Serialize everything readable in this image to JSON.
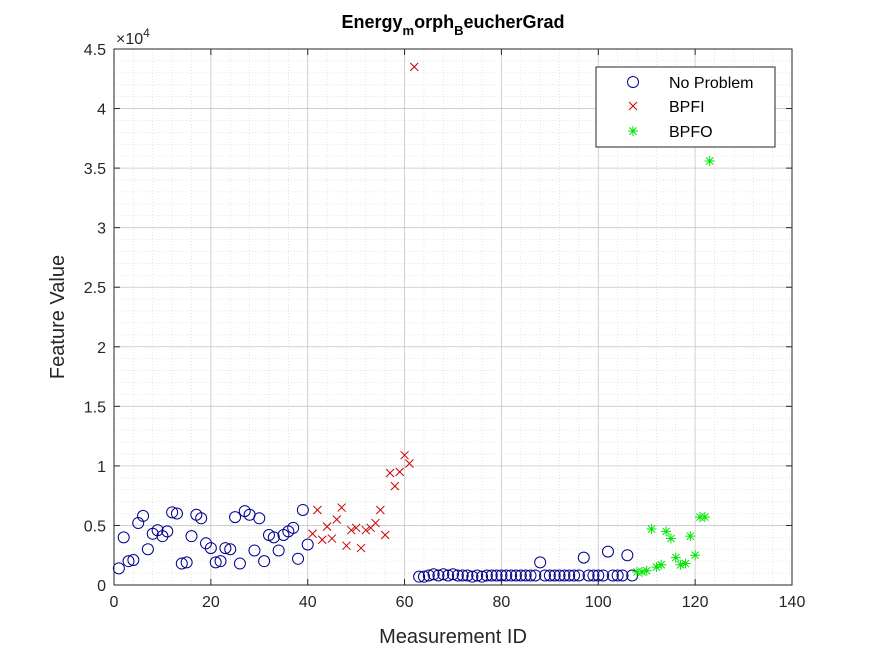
{
  "chart_data": {
    "type": "scatter",
    "title": {
      "main": "Energy",
      "sub1": "m",
      "mid": "orph",
      "sub2": "B",
      "tail": "eucherGrad"
    },
    "xlabel": "Measurement ID",
    "ylabel": "Feature Value",
    "y_exponent_label": "×10",
    "y_exponent_power": "4",
    "xlim": [
      0,
      140
    ],
    "ylim": [
      0,
      45000
    ],
    "xticks": [
      0,
      20,
      40,
      60,
      80,
      100,
      120,
      140
    ],
    "xtick_labels": [
      "0",
      "20",
      "40",
      "60",
      "80",
      "100",
      "120",
      "140"
    ],
    "yticks": [
      0,
      5000,
      10000,
      15000,
      20000,
      25000,
      30000,
      35000,
      40000,
      45000
    ],
    "ytick_labels": [
      "0",
      "0.5",
      "1",
      "1.5",
      "2",
      "2.5",
      "3",
      "3.5",
      "4",
      "4.5"
    ],
    "grid": true,
    "minor_grid": true,
    "legend_position": "top-right",
    "series": [
      {
        "name": "No Problem",
        "marker": "circle",
        "color": "#00008B",
        "points": [
          [
            1,
            1400
          ],
          [
            2,
            4000
          ],
          [
            3,
            2000
          ],
          [
            4,
            2100
          ],
          [
            5,
            5200
          ],
          [
            6,
            5800
          ],
          [
            7,
            3000
          ],
          [
            8,
            4300
          ],
          [
            9,
            4600
          ],
          [
            10,
            4100
          ],
          [
            11,
            4500
          ],
          [
            12,
            6100
          ],
          [
            13,
            6000
          ],
          [
            14,
            1800
          ],
          [
            15,
            1900
          ],
          [
            16,
            4100
          ],
          [
            17,
            5900
          ],
          [
            18,
            5600
          ],
          [
            19,
            3500
          ],
          [
            20,
            3100
          ],
          [
            21,
            1900
          ],
          [
            22,
            2000
          ],
          [
            23,
            3100
          ],
          [
            24,
            3000
          ],
          [
            25,
            5700
          ],
          [
            26,
            1800
          ],
          [
            27,
            6200
          ],
          [
            28,
            5900
          ],
          [
            29,
            2900
          ],
          [
            30,
            5600
          ],
          [
            31,
            2000
          ],
          [
            32,
            4200
          ],
          [
            33,
            4000
          ],
          [
            34,
            2900
          ],
          [
            35,
            4200
          ],
          [
            36,
            4500
          ],
          [
            37,
            4800
          ],
          [
            38,
            2200
          ],
          [
            39,
            6300
          ],
          [
            40,
            3400
          ],
          [
            63,
            700
          ],
          [
            64,
            700
          ],
          [
            65,
            800
          ],
          [
            66,
            900
          ],
          [
            67,
            800
          ],
          [
            68,
            900
          ],
          [
            69,
            800
          ],
          [
            70,
            900
          ],
          [
            71,
            800
          ],
          [
            72,
            800
          ],
          [
            73,
            800
          ],
          [
            74,
            700
          ],
          [
            75,
            800
          ],
          [
            76,
            700
          ],
          [
            77,
            800
          ],
          [
            78,
            800
          ],
          [
            79,
            800
          ],
          [
            80,
            800
          ],
          [
            81,
            800
          ],
          [
            82,
            800
          ],
          [
            83,
            800
          ],
          [
            84,
            800
          ],
          [
            85,
            800
          ],
          [
            86,
            800
          ],
          [
            87,
            800
          ],
          [
            88,
            1900
          ],
          [
            89,
            800
          ],
          [
            90,
            800
          ],
          [
            91,
            800
          ],
          [
            92,
            800
          ],
          [
            93,
            800
          ],
          [
            94,
            800
          ],
          [
            95,
            800
          ],
          [
            96,
            800
          ],
          [
            97,
            2300
          ],
          [
            98,
            800
          ],
          [
            99,
            800
          ],
          [
            100,
            800
          ],
          [
            101,
            800
          ],
          [
            102,
            2800
          ],
          [
            103,
            800
          ],
          [
            104,
            800
          ],
          [
            105,
            800
          ],
          [
            106,
            2500
          ],
          [
            107,
            800
          ]
        ]
      },
      {
        "name": "BPFI",
        "marker": "x",
        "color": "#CC0000",
        "points": [
          [
            41,
            4300
          ],
          [
            42,
            6300
          ],
          [
            43,
            3800
          ],
          [
            44,
            4900
          ],
          [
            45,
            3900
          ],
          [
            46,
            5500
          ],
          [
            47,
            6500
          ],
          [
            48,
            3300
          ],
          [
            49,
            4600
          ],
          [
            50,
            4800
          ],
          [
            51,
            3100
          ],
          [
            52,
            4600
          ],
          [
            53,
            4800
          ],
          [
            54,
            5200
          ],
          [
            55,
            6300
          ],
          [
            56,
            4200
          ],
          [
            57,
            9400
          ],
          [
            58,
            8300
          ],
          [
            59,
            9500
          ],
          [
            60,
            10900
          ],
          [
            61,
            10200
          ],
          [
            62,
            43500
          ]
        ]
      },
      {
        "name": "BPFO",
        "marker": "star",
        "color": "#00E600",
        "points": [
          [
            108,
            1100
          ],
          [
            109,
            1100
          ],
          [
            110,
            1200
          ],
          [
            111,
            4700
          ],
          [
            112,
            1500
          ],
          [
            113,
            1700
          ],
          [
            114,
            4500
          ],
          [
            115,
            3900
          ],
          [
            116,
            2300
          ],
          [
            117,
            1700
          ],
          [
            118,
            1800
          ],
          [
            119,
            4100
          ],
          [
            120,
            2500
          ],
          [
            121,
            5700
          ],
          [
            122,
            5700
          ],
          [
            123,
            35600
          ]
        ]
      }
    ]
  }
}
